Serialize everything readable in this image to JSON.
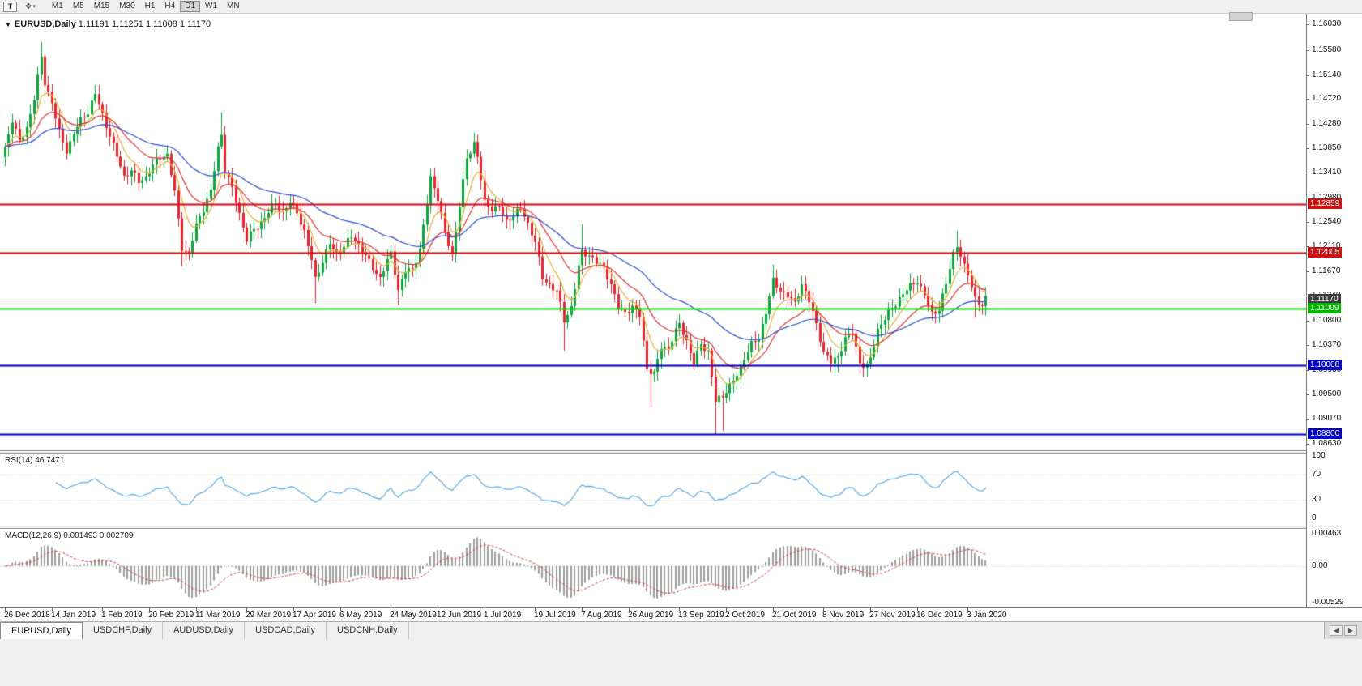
{
  "toolbar": {
    "tool_button": "T",
    "timeframes": [
      "M1",
      "M5",
      "M15",
      "M30",
      "H1",
      "H4",
      "D1",
      "W1",
      "MN"
    ],
    "active_timeframe": "D1"
  },
  "chart": {
    "title": "EURUSD,Daily",
    "ohlc": "1.11191 1.11251 1.11008 1.11170",
    "open": "1.11191",
    "high": "1.11251",
    "low": "1.11008",
    "close": "1.11170"
  },
  "price_axis": {
    "labels": [
      "1.16030",
      "1.15580",
      "1.15140",
      "1.14720",
      "1.14280",
      "1.13850",
      "1.13410",
      "1.12980",
      "1.12540",
      "1.12110",
      "1.11670",
      "1.11240",
      "1.10800",
      "1.10370",
      "1.09930",
      "1.09500",
      "1.09070",
      "1.08630"
    ]
  },
  "levels": [
    {
      "name": "resistance-line-1",
      "label": "1.12859",
      "value": 1.12859,
      "line_color": "#CC1111",
      "tag_color": "#CC1111",
      "width": 2
    },
    {
      "name": "resistance-line-2",
      "label": "1.12005",
      "value": 1.12005,
      "line_color": "#CC1111",
      "tag_color": "#CC1111",
      "width": 2
    },
    {
      "name": "current-price-line",
      "label": "1.11170",
      "value": 1.1117,
      "line_color": "#B4B4B4",
      "tag_color": "#3F3F3F",
      "width": 1
    },
    {
      "name": "support-line-green",
      "label": "1.11009",
      "value": 1.11009,
      "line_color": "#00D800",
      "tag_color": "#00B800",
      "width": 2
    },
    {
      "name": "support-line-blue-1",
      "label": "1.10008",
      "value": 1.10008,
      "line_color": "#0000C8",
      "tag_color": "#0000C8",
      "width": 2
    },
    {
      "name": "support-line-blue-2",
      "label": "1.08800",
      "value": 1.088,
      "line_color": "#0000C8",
      "tag_color": "#0000C8",
      "width": 2
    }
  ],
  "rsi": {
    "title": "RSI(14) 46.7471",
    "scale_labels": [
      "100",
      "70",
      "30",
      "0"
    ],
    "scale_values": [
      100,
      70,
      30,
      0
    ],
    "guides": [
      70,
      30
    ],
    "line_color": "#4FA3DE"
  },
  "macd": {
    "title": "MACD(12,26,9) 0.001493 0.002709",
    "scale_labels": [
      "0.00463",
      "0.00",
      "-0.00529"
    ],
    "scale_values": [
      0.00463,
      0,
      -0.00529
    ],
    "hist_color": "#9E9E9E",
    "signal_color": "#D23A3A"
  },
  "time_axis": {
    "labels": [
      "26 Dec 2018",
      "14 Jan 2019",
      "1 Feb 2019",
      "20 Feb 2019",
      "11 Mar 2019",
      "29 Mar 2019",
      "17 Apr 2019",
      "6 May 2019",
      "24 May 2019",
      "12 Jun 2019",
      "1 Jul 2019",
      "19 Jul 2019",
      "7 Aug 2019",
      "26 Aug 2019",
      "13 Sep 2019",
      "2 Oct 2019",
      "21 Oct 2019",
      "8 Nov 2019",
      "27 Nov 2019",
      "16 Dec 2019",
      "3 Jan 2020"
    ],
    "bar_indices": [
      0,
      13,
      27,
      40,
      53,
      67,
      80,
      93,
      107,
      120,
      133,
      147,
      160,
      173,
      187,
      200,
      213,
      227,
      240,
      253,
      267
    ]
  },
  "tabs": {
    "items": [
      "EURUSD,Daily",
      "USDCHF,Daily",
      "AUDUSD,Daily",
      "USDCAD,Daily",
      "USDCNH,Daily"
    ],
    "active": "EURUSD,Daily"
  },
  "colors": {
    "bull": "#0DA63C",
    "bear": "#E8242C",
    "background": "#FFFFFF"
  },
  "chart_data": {
    "type": "candlestick",
    "symbol": "EURUSD",
    "timeframe": "Daily",
    "candle_count": 273,
    "y_range": [
      1.0851,
      1.1622
    ],
    "close_anchors": [
      [
        0,
        1.1382
      ],
      [
        2,
        1.1436
      ],
      [
        4,
        1.1398
      ],
      [
        6,
        1.1422
      ],
      [
        8,
        1.1472
      ],
      [
        10,
        1.1542
      ],
      [
        11,
        1.1498
      ],
      [
        13,
        1.1466
      ],
      [
        15,
        1.1415
      ],
      [
        17,
        1.1382
      ],
      [
        19,
        1.1408
      ],
      [
        21,
        1.1432
      ],
      [
        23,
        1.1448
      ],
      [
        25,
        1.1482
      ],
      [
        27,
        1.1446
      ],
      [
        29,
        1.1408
      ],
      [
        31,
        1.1368
      ],
      [
        33,
        1.1332
      ],
      [
        35,
        1.1346
      ],
      [
        37,
        1.1328
      ],
      [
        39,
        1.1336
      ],
      [
        41,
        1.1352
      ],
      [
        43,
        1.1366
      ],
      [
        45,
        1.1372
      ],
      [
        47,
        1.1308
      ],
      [
        49,
        1.1212
      ],
      [
        51,
        1.1198
      ],
      [
        53,
        1.1246
      ],
      [
        55,
        1.1276
      ],
      [
        57,
        1.1308
      ],
      [
        59,
        1.1388
      ],
      [
        60,
        1.1412
      ],
      [
        61,
        1.1348
      ],
      [
        63,
        1.1312
      ],
      [
        65,
        1.1266
      ],
      [
        67,
        1.1222
      ],
      [
        69,
        1.1242
      ],
      [
        71,
        1.1256
      ],
      [
        73,
        1.1272
      ],
      [
        75,
        1.1286
      ],
      [
        77,
        1.1268
      ],
      [
        79,
        1.1288
      ],
      [
        81,
        1.1276
      ],
      [
        83,
        1.1238
      ],
      [
        85,
        1.1186
      ],
      [
        86,
        1.1152
      ],
      [
        88,
        1.1182
      ],
      [
        90,
        1.1216
      ],
      [
        92,
        1.1202
      ],
      [
        94,
        1.1212
      ],
      [
        96,
        1.1228
      ],
      [
        98,
        1.1212
      ],
      [
        100,
        1.1192
      ],
      [
        102,
        1.1176
      ],
      [
        104,
        1.1158
      ],
      [
        106,
        1.1186
      ],
      [
        107,
        1.1198
      ],
      [
        109,
        1.1132
      ],
      [
        111,
        1.1166
      ],
      [
        113,
        1.1174
      ],
      [
        115,
        1.1208
      ],
      [
        117,
        1.1288
      ],
      [
        118,
        1.1332
      ],
      [
        120,
        1.1294
      ],
      [
        122,
        1.1232
      ],
      [
        124,
        1.1198
      ],
      [
        126,
        1.1286
      ],
      [
        128,
        1.1366
      ],
      [
        130,
        1.1392
      ],
      [
        131,
        1.1368
      ],
      [
        133,
        1.1286
      ],
      [
        135,
        1.128
      ],
      [
        137,
        1.1284
      ],
      [
        139,
        1.1254
      ],
      [
        141,
        1.1266
      ],
      [
        143,
        1.1274
      ],
      [
        145,
        1.125
      ],
      [
        147,
        1.1224
      ],
      [
        149,
        1.1156
      ],
      [
        151,
        1.1142
      ],
      [
        153,
        1.113
      ],
      [
        155,
        1.1078
      ],
      [
        157,
        1.1106
      ],
      [
        159,
        1.1178
      ],
      [
        160,
        1.1202
      ],
      [
        162,
        1.1196
      ],
      [
        164,
        1.118
      ],
      [
        166,
        1.1172
      ],
      [
        168,
        1.1146
      ],
      [
        170,
        1.1106
      ],
      [
        172,
        1.1096
      ],
      [
        174,
        1.1102
      ],
      [
        176,
        1.1086
      ],
      [
        178,
        1.0996
      ],
      [
        180,
        1.0988
      ],
      [
        182,
        1.1036
      ],
      [
        184,
        1.103
      ],
      [
        186,
        1.1058
      ],
      [
        187,
        1.1072
      ],
      [
        189,
        1.1044
      ],
      [
        191,
        1.1006
      ],
      [
        193,
        1.1042
      ],
      [
        195,
        1.1024
      ],
      [
        197,
        1.0934
      ],
      [
        199,
        1.0946
      ],
      [
        201,
        1.0966
      ],
      [
        203,
        1.0986
      ],
      [
        205,
        1.1016
      ],
      [
        207,
        1.1036
      ],
      [
        209,
        1.1046
      ],
      [
        211,
        1.1096
      ],
      [
        213,
        1.1152
      ],
      [
        215,
        1.1136
      ],
      [
        217,
        1.1124
      ],
      [
        219,
        1.1106
      ],
      [
        221,
        1.1144
      ],
      [
        223,
        1.1116
      ],
      [
        225,
        1.1076
      ],
      [
        227,
        1.1026
      ],
      [
        229,
        1.1004
      ],
      [
        231,
        1.1014
      ],
      [
        233,
        1.1048
      ],
      [
        235,
        1.1062
      ],
      [
        237,
        1.1008
      ],
      [
        239,
        1.0998
      ],
      [
        240,
        1.101
      ],
      [
        242,
        1.1062
      ],
      [
        244,
        1.1084
      ],
      [
        246,
        1.1104
      ],
      [
        248,
        1.1122
      ],
      [
        250,
        1.1134
      ],
      [
        253,
        1.1148
      ],
      [
        255,
        1.1124
      ],
      [
        257,
        1.1094
      ],
      [
        259,
        1.1104
      ],
      [
        261,
        1.1144
      ],
      [
        263,
        1.1196
      ],
      [
        264,
        1.1212
      ],
      [
        266,
        1.1174
      ],
      [
        267,
        1.1162
      ],
      [
        269,
        1.1124
      ],
      [
        271,
        1.1106
      ],
      [
        272,
        1.1117
      ]
    ],
    "wick_overrides": [
      [
        10,
        "h",
        1.1572
      ],
      [
        25,
        "h",
        1.1496
      ],
      [
        49,
        "l",
        1.1176
      ],
      [
        60,
        "h",
        1.1448
      ],
      [
        86,
        "l",
        1.1111
      ],
      [
        109,
        "l",
        1.1107
      ],
      [
        118,
        "h",
        1.1348
      ],
      [
        130,
        "h",
        1.1412
      ],
      [
        155,
        "l",
        1.1027
      ],
      [
        160,
        "h",
        1.125
      ],
      [
        179,
        "l",
        1.0926
      ],
      [
        197,
        "l",
        1.0879
      ],
      [
        199,
        "l",
        1.0885
      ],
      [
        213,
        "h",
        1.1179
      ],
      [
        231,
        "l",
        1.0989
      ],
      [
        239,
        "l",
        1.0981
      ],
      [
        264,
        "h",
        1.1239
      ],
      [
        269,
        "l",
        1.1085
      ]
    ],
    "noise_amp": 0.0007,
    "moving_averages": [
      {
        "period": 7,
        "color": "#E6B33C"
      },
      {
        "period": 18,
        "color": "#E03232"
      },
      {
        "period": 45,
        "color": "#2B50D4"
      }
    ],
    "rsi": {
      "period": 14,
      "last_value": 46.7471
    },
    "macd": {
      "fast": 12,
      "slow": 26,
      "signal": 9,
      "main": 0.001493,
      "signal_value": 0.002709,
      "range": [
        -0.00529,
        0.00463
      ]
    }
  }
}
